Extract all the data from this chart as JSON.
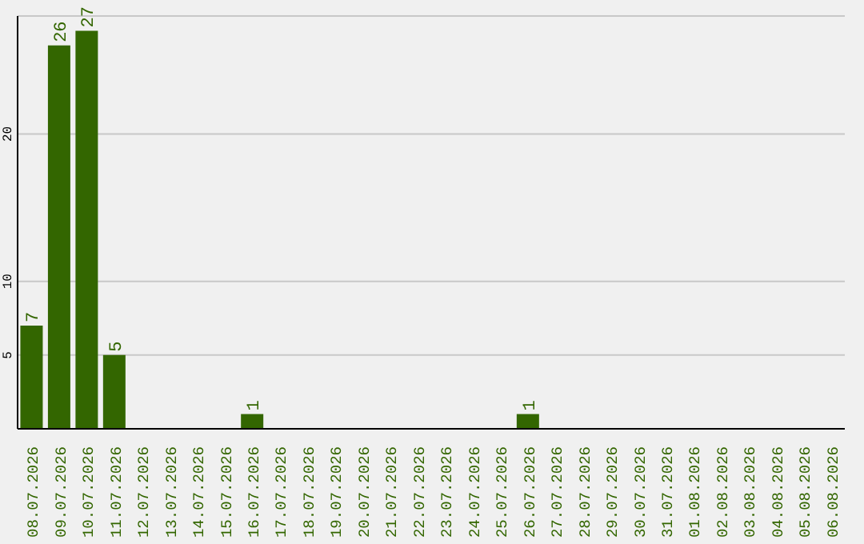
{
  "chart_data": {
    "type": "bar",
    "categories": [
      "08.07.2026",
      "09.07.2026",
      "10.07.2026",
      "11.07.2026",
      "12.07.2026",
      "13.07.2026",
      "14.07.2026",
      "15.07.2026",
      "16.07.2026",
      "17.07.2026",
      "18.07.2026",
      "19.07.2026",
      "20.07.2026",
      "21.07.2026",
      "22.07.2026",
      "23.07.2026",
      "24.07.2026",
      "25.07.2026",
      "26.07.2026",
      "27.07.2026",
      "28.07.2026",
      "29.07.2026",
      "30.07.2026",
      "31.07.2026",
      "01.08.2026",
      "02.08.2026",
      "03.08.2026",
      "04.08.2026",
      "05.08.2026",
      "06.08.2026"
    ],
    "values": [
      7,
      26,
      27,
      5,
      0,
      0,
      0,
      0,
      1,
      0,
      0,
      0,
      0,
      0,
      0,
      0,
      0,
      0,
      1,
      0,
      0,
      0,
      0,
      0,
      0,
      0,
      0,
      0,
      0,
      0
    ],
    "value_labels": [
      "7",
      "26",
      "27",
      "5",
      null,
      null,
      null,
      null,
      "1",
      null,
      null,
      null,
      null,
      null,
      null,
      null,
      null,
      null,
      "1",
      null,
      null,
      null,
      null,
      null,
      null,
      null,
      null,
      null,
      null,
      null
    ],
    "color": "#336600",
    "ylim": [
      0,
      28
    ],
    "yticks": [
      5,
      10,
      20
    ],
    "grid": "y"
  }
}
